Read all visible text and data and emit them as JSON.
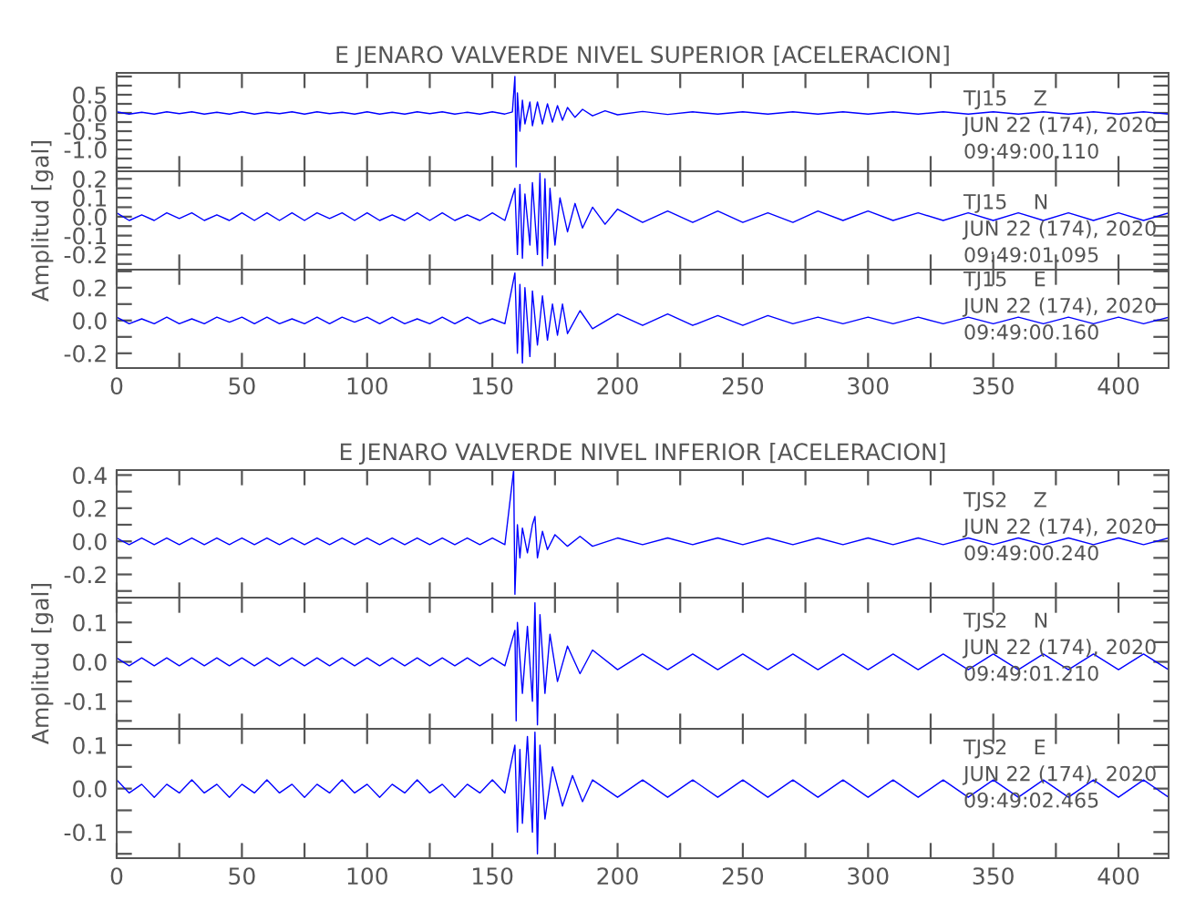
{
  "chart_data": [
    {
      "type": "line",
      "title": "E JENARO VALVERDE NIVEL SUPERIOR [ACELERACION]",
      "color": "#0000ff",
      "tick_labels": "y",
      "x": [
        0,
        5,
        10,
        15,
        20,
        25,
        30,
        35,
        40,
        45,
        50,
        55,
        60,
        65,
        70,
        75,
        80,
        85,
        90,
        95,
        100,
        105,
        110,
        115,
        120,
        125,
        130,
        135,
        140,
        145,
        150,
        155,
        158,
        159,
        159.5,
        160,
        161,
        162,
        163,
        165,
        166,
        168,
        170,
        172,
        174,
        176,
        178,
        180,
        183,
        186,
        190,
        195,
        200,
        210,
        220,
        230,
        240,
        250,
        260,
        270,
        280,
        290,
        300,
        310,
        320,
        330,
        340,
        350,
        360,
        370,
        380,
        390,
        400,
        410,
        420
      ],
      "values": [
        0.03,
        -0.03,
        0.02,
        -0.03,
        0.03,
        -0.02,
        0.03,
        -0.03,
        0.02,
        -0.03,
        0.03,
        -0.03,
        0.02,
        -0.02,
        0.03,
        -0.03,
        0.03,
        -0.02,
        0.02,
        -0.03,
        0.03,
        -0.03,
        0.02,
        -0.03,
        0.03,
        -0.02,
        0.03,
        -0.03,
        0.02,
        -0.03,
        0.03,
        -0.03,
        0.03,
        1.0,
        -1.48,
        0.55,
        -0.5,
        0.35,
        -0.3,
        0.3,
        -0.35,
        0.3,
        -0.3,
        0.25,
        -0.25,
        0.2,
        -0.2,
        0.15,
        -0.12,
        0.1,
        -0.08,
        0.06,
        -0.05,
        0.04,
        -0.04,
        0.03,
        -0.03,
        0.03,
        -0.03,
        0.03,
        -0.03,
        0.03,
        -0.03,
        0.03,
        -0.03,
        0.03,
        -0.03,
        0.03,
        -0.03,
        0.03,
        -0.03,
        0.03,
        -0.03,
        0.03,
        -0.03
      ],
      "xlim": [
        0,
        420
      ],
      "xticks": [
        0,
        {
          "value": 25,
          "label": null
        },
        50,
        {
          "value": 75,
          "label": null
        },
        100,
        {
          "value": 125,
          "label": null
        },
        150,
        {
          "value": 175,
          "label": null
        },
        200,
        {
          "value": 225,
          "label": null
        },
        250,
        {
          "value": 275,
          "label": null
        },
        300,
        {
          "value": 325,
          "label": null
        },
        350,
        {
          "value": 375,
          "label": null
        },
        400
      ],
      "ylim": [
        -1.6,
        1.1
      ],
      "yticks": [
        {
          "value": -1.5,
          "label": null
        },
        {
          "value": -1.25,
          "label": null
        },
        {
          "value": -1.0,
          "label": "-1.0"
        },
        {
          "value": -0.75,
          "label": null
        },
        -0.5,
        {
          "value": -0.25,
          "label": null
        },
        {
          "value": 0,
          "label": "0.0"
        },
        {
          "value": 0.25,
          "label": null
        },
        0.5,
        {
          "value": 0.75,
          "label": null
        },
        {
          "value": 1.0,
          "label": null
        }
      ],
      "annotations": [
        "TJ15    Z",
        "JUN 22 (174), 2020",
        "09:49:00.110"
      ]
    },
    {
      "type": "line",
      "ylabel": "Amplitud [gal]",
      "color": "#0000ff",
      "tick_labels": "y",
      "x": [
        0,
        5,
        10,
        15,
        20,
        25,
        30,
        35,
        40,
        45,
        50,
        55,
        60,
        65,
        70,
        75,
        80,
        85,
        90,
        95,
        100,
        105,
        110,
        115,
        120,
        125,
        130,
        135,
        140,
        145,
        150,
        155,
        159,
        160,
        161,
        162,
        163,
        165,
        166,
        168,
        169,
        170,
        171,
        172,
        173,
        175,
        177,
        180,
        183,
        186,
        190,
        195,
        200,
        210,
        220,
        230,
        240,
        250,
        260,
        270,
        280,
        290,
        300,
        310,
        320,
        330,
        340,
        350,
        360,
        370,
        380,
        390,
        400,
        410,
        420
      ],
      "values": [
        0.02,
        -0.02,
        0.01,
        -0.02,
        0.02,
        -0.01,
        0.02,
        -0.02,
        0.01,
        -0.02,
        0.02,
        -0.02,
        0.02,
        -0.02,
        0.02,
        -0.02,
        0.02,
        -0.01,
        0.02,
        -0.02,
        0.02,
        -0.02,
        0.01,
        -0.02,
        0.02,
        -0.02,
        0.02,
        -0.02,
        0.01,
        -0.02,
        0.02,
        -0.02,
        0.15,
        -0.2,
        0.17,
        -0.22,
        0.12,
        -0.15,
        0.18,
        -0.2,
        0.23,
        -0.26,
        0.2,
        -0.22,
        0.15,
        -0.15,
        0.1,
        -0.08,
        0.07,
        -0.06,
        0.05,
        -0.04,
        0.04,
        -0.03,
        0.03,
        -0.03,
        0.03,
        -0.03,
        0.02,
        -0.03,
        0.03,
        -0.02,
        0.03,
        -0.02,
        0.02,
        -0.02,
        0.02,
        -0.02,
        0.02,
        -0.02,
        0.02,
        -0.02,
        0.02,
        -0.02,
        0.02
      ],
      "xlim": [
        0,
        420
      ],
      "xticks": [
        0,
        {
          "value": 25,
          "label": null
        },
        50,
        {
          "value": 75,
          "label": null
        },
        100,
        {
          "value": 125,
          "label": null
        },
        150,
        {
          "value": 175,
          "label": null
        },
        200,
        {
          "value": 225,
          "label": null
        },
        250,
        {
          "value": 275,
          "label": null
        },
        300,
        {
          "value": 325,
          "label": null
        },
        350,
        {
          "value": 375,
          "label": null
        },
        400
      ],
      "ylim": [
        -0.28,
        0.24
      ],
      "yticks": [
        {
          "value": -0.25,
          "label": null
        },
        -0.2,
        {
          "value": -0.15,
          "label": null
        },
        -0.1,
        {
          "value": -0.05,
          "label": null
        },
        {
          "value": 0,
          "label": "0.0"
        },
        {
          "value": 0.05,
          "label": null
        },
        0.1,
        {
          "value": 0.15,
          "label": null
        },
        0.2
      ],
      "annotations": [
        "TJ15    N",
        "JUN 22 (174), 2020",
        "09:49:01.095"
      ]
    },
    {
      "type": "line",
      "color": "#0000ff",
      "x": [
        0,
        5,
        10,
        15,
        20,
        25,
        30,
        35,
        40,
        45,
        50,
        55,
        60,
        65,
        70,
        75,
        80,
        85,
        90,
        95,
        100,
        105,
        110,
        115,
        120,
        125,
        130,
        135,
        140,
        145,
        150,
        155,
        159,
        160,
        161,
        162,
        163,
        165,
        166,
        168,
        170,
        172,
        174,
        176,
        178,
        180,
        185,
        190,
        200,
        210,
        220,
        230,
        240,
        250,
        260,
        270,
        280,
        290,
        300,
        310,
        320,
        330,
        340,
        350,
        360,
        370,
        380,
        390,
        400,
        410,
        420
      ],
      "values": [
        0.02,
        -0.02,
        0.01,
        -0.02,
        0.02,
        -0.02,
        0.01,
        -0.02,
        0.02,
        -0.01,
        0.02,
        -0.02,
        0.02,
        -0.02,
        0.01,
        -0.02,
        0.02,
        -0.02,
        0.02,
        -0.01,
        0.02,
        -0.02,
        0.02,
        -0.02,
        0.01,
        -0.02,
        0.02,
        -0.02,
        0.02,
        -0.02,
        0.01,
        -0.02,
        0.29,
        -0.2,
        0.22,
        -0.26,
        0.2,
        -0.22,
        0.18,
        -0.15,
        0.15,
        -0.12,
        0.1,
        -0.09,
        0.1,
        -0.08,
        0.06,
        -0.05,
        0.04,
        -0.03,
        0.04,
        -0.03,
        0.03,
        -0.03,
        0.03,
        -0.02,
        0.02,
        -0.02,
        0.02,
        -0.02,
        0.02,
        -0.02,
        0.02,
        -0.02,
        0.02,
        -0.02,
        0.02,
        -0.02,
        0.02,
        -0.02,
        0.02
      ],
      "xlim": [
        0,
        420
      ],
      "xticks": [
        0,
        {
          "value": 25,
          "label": null
        },
        50,
        {
          "value": 75,
          "label": null
        },
        100,
        {
          "value": 125,
          "label": null
        },
        150,
        {
          "value": 175,
          "label": null
        },
        200,
        {
          "value": 225,
          "label": null
        },
        250,
        {
          "value": 275,
          "label": null
        },
        300,
        {
          "value": 325,
          "label": null
        },
        350,
        {
          "value": 375,
          "label": null
        },
        400
      ],
      "ylim": [
        -0.29,
        0.31
      ],
      "yticks": [
        -0.2,
        {
          "value": -0.1,
          "label": null
        },
        {
          "value": 0,
          "label": "0.0"
        },
        {
          "value": 0.1,
          "label": null
        },
        0.2,
        {
          "value": 0.3,
          "label": null
        }
      ],
      "annotations": [
        "TJ15    E",
        "JUN 22 (174), 2020",
        "09:49:00.160"
      ]
    },
    {
      "type": "line",
      "title": "E JENARO VALVERDE NIVEL INFERIOR [ACELERACION]",
      "color": "#0000ff",
      "tick_labels": "y",
      "x": [
        0,
        5,
        10,
        15,
        20,
        25,
        30,
        35,
        40,
        45,
        50,
        55,
        60,
        65,
        70,
        75,
        80,
        85,
        90,
        95,
        100,
        105,
        110,
        115,
        120,
        125,
        130,
        135,
        140,
        145,
        150,
        155,
        158.5,
        159,
        160,
        161,
        162,
        164,
        166,
        167,
        168,
        170,
        172,
        175,
        180,
        185,
        190,
        200,
        210,
        220,
        230,
        240,
        250,
        260,
        270,
        280,
        290,
        300,
        310,
        320,
        330,
        340,
        350,
        360,
        370,
        380,
        390,
        400,
        410,
        420
      ],
      "values": [
        0.02,
        -0.02,
        0.02,
        -0.02,
        0.02,
        -0.02,
        0.02,
        -0.02,
        0.02,
        -0.02,
        0.02,
        -0.02,
        0.02,
        -0.02,
        0.02,
        -0.02,
        0.02,
        -0.02,
        0.02,
        -0.02,
        0.02,
        -0.02,
        0.02,
        -0.02,
        0.02,
        -0.02,
        0.02,
        -0.02,
        0.02,
        -0.02,
        0.02,
        -0.02,
        0.43,
        -0.32,
        0.1,
        -0.1,
        0.08,
        -0.07,
        0.1,
        0.15,
        -0.1,
        0.06,
        -0.05,
        0.04,
        -0.03,
        0.03,
        -0.03,
        0.02,
        -0.02,
        0.02,
        -0.02,
        0.02,
        -0.02,
        0.02,
        -0.02,
        0.02,
        -0.02,
        0.02,
        -0.02,
        0.02,
        -0.02,
        0.02,
        -0.02,
        0.02,
        -0.02,
        0.02,
        -0.02,
        0.02,
        -0.02,
        0.02
      ],
      "xlim": [
        0,
        420
      ],
      "xticks": [
        0,
        {
          "value": 25,
          "label": null
        },
        50,
        {
          "value": 75,
          "label": null
        },
        100,
        {
          "value": 125,
          "label": null
        },
        150,
        {
          "value": 175,
          "label": null
        },
        200,
        {
          "value": 225,
          "label": null
        },
        250,
        {
          "value": 275,
          "label": null
        },
        300,
        {
          "value": 325,
          "label": null
        },
        350,
        {
          "value": 375,
          "label": null
        },
        400
      ],
      "ylim": [
        -0.34,
        0.43
      ],
      "yticks": [
        {
          "value": -0.3,
          "label": null
        },
        -0.2,
        {
          "value": -0.1,
          "label": null
        },
        {
          "value": 0,
          "label": "0.0"
        },
        {
          "value": 0.1,
          "label": null
        },
        0.2,
        {
          "value": 0.3,
          "label": null
        },
        0.4
      ],
      "annotations": [
        "TJS2    Z",
        "JUN 22 (174), 2020",
        "09:49:00.240"
      ]
    },
    {
      "type": "line",
      "ylabel": "Amplitud [gal]",
      "color": "#0000ff",
      "tick_labels": "y",
      "x": [
        0,
        5,
        10,
        15,
        20,
        25,
        30,
        35,
        40,
        45,
        50,
        55,
        60,
        65,
        70,
        75,
        80,
        85,
        90,
        95,
        100,
        105,
        110,
        115,
        120,
        125,
        130,
        135,
        140,
        145,
        150,
        155,
        159,
        159.5,
        160,
        162,
        164,
        166,
        167,
        168,
        169,
        171,
        173,
        176,
        180,
        185,
        190,
        200,
        210,
        220,
        230,
        240,
        250,
        260,
        270,
        280,
        290,
        300,
        310,
        320,
        330,
        340,
        350,
        360,
        370,
        380,
        390,
        400,
        410,
        420
      ],
      "values": [
        0.01,
        -0.01,
        0.01,
        -0.01,
        0.01,
        -0.01,
        0.01,
        -0.01,
        0.01,
        -0.01,
        0.01,
        -0.01,
        0.01,
        -0.01,
        0.01,
        -0.01,
        0.01,
        -0.01,
        0.01,
        -0.01,
        0.01,
        -0.01,
        0.01,
        -0.01,
        0.01,
        -0.01,
        0.01,
        -0.01,
        0.01,
        -0.01,
        0.01,
        -0.01,
        0.08,
        -0.15,
        0.1,
        -0.08,
        0.09,
        -0.1,
        0.15,
        -0.16,
        0.12,
        -0.08,
        0.07,
        -0.05,
        0.04,
        -0.03,
        0.03,
        -0.02,
        0.02,
        -0.02,
        0.02,
        -0.02,
        0.02,
        -0.02,
        0.02,
        -0.02,
        0.02,
        -0.02,
        0.02,
        -0.02,
        0.02,
        -0.02,
        0.02,
        -0.02,
        0.02,
        -0.02,
        0.02,
        -0.02,
        0.02,
        -0.02
      ],
      "xlim": [
        0,
        420
      ],
      "xticks": [
        0,
        {
          "value": 25,
          "label": null
        },
        50,
        {
          "value": 75,
          "label": null
        },
        100,
        {
          "value": 125,
          "label": null
        },
        150,
        {
          "value": 175,
          "label": null
        },
        200,
        {
          "value": 225,
          "label": null
        },
        250,
        {
          "value": 275,
          "label": null
        },
        300,
        {
          "value": 325,
          "label": null
        },
        350,
        {
          "value": 375,
          "label": null
        },
        400
      ],
      "ylim": [
        -0.17,
        0.163
      ],
      "yticks": [
        {
          "value": -0.15,
          "label": null
        },
        -0.1,
        {
          "value": -0.05,
          "label": null
        },
        {
          "value": 0,
          "label": "0.0"
        },
        {
          "value": 0.05,
          "label": null
        },
        0.1,
        {
          "value": 0.15,
          "label": null
        }
      ],
      "annotations": [
        "TJS2    N",
        "JUN 22 (174), 2020",
        "09:49:01.210"
      ]
    },
    {
      "type": "line",
      "color": "#0000ff",
      "x": [
        0,
        5,
        10,
        15,
        20,
        25,
        30,
        35,
        40,
        45,
        50,
        55,
        60,
        65,
        70,
        75,
        80,
        85,
        90,
        95,
        100,
        105,
        110,
        115,
        120,
        125,
        130,
        135,
        140,
        145,
        150,
        155,
        159,
        160,
        161,
        162,
        164,
        166,
        167,
        168,
        169,
        171,
        174,
        178,
        182,
        186,
        190,
        200,
        210,
        220,
        230,
        240,
        250,
        260,
        270,
        280,
        290,
        300,
        310,
        320,
        330,
        340,
        350,
        360,
        370,
        380,
        390,
        400,
        410,
        420
      ],
      "values": [
        0.02,
        -0.01,
        0.01,
        -0.02,
        0.01,
        -0.01,
        0.02,
        -0.01,
        0.01,
        -0.02,
        0.01,
        -0.01,
        0.02,
        -0.01,
        0.01,
        -0.02,
        0.01,
        -0.01,
        0.02,
        -0.01,
        0.01,
        -0.02,
        0.01,
        -0.01,
        0.02,
        -0.01,
        0.01,
        -0.02,
        0.01,
        -0.01,
        0.02,
        -0.01,
        0.1,
        -0.1,
        0.09,
        -0.08,
        0.12,
        -0.1,
        0.13,
        -0.15,
        0.1,
        -0.07,
        0.05,
        -0.04,
        0.03,
        -0.03,
        0.02,
        -0.02,
        0.02,
        -0.02,
        0.02,
        -0.02,
        0.02,
        -0.02,
        0.02,
        -0.02,
        0.02,
        -0.02,
        0.02,
        -0.02,
        0.02,
        -0.02,
        0.02,
        -0.02,
        0.02,
        -0.02,
        0.02,
        -0.02,
        0.02,
        -0.02
      ],
      "xlim": [
        0,
        420
      ],
      "xticks": [
        0,
        {
          "value": 25,
          "label": null
        },
        50,
        {
          "value": 75,
          "label": null
        },
        100,
        {
          "value": 125,
          "label": null
        },
        150,
        {
          "value": 175,
          "label": null
        },
        200,
        {
          "value": 225,
          "label": null
        },
        250,
        {
          "value": 275,
          "label": null
        },
        300,
        {
          "value": 325,
          "label": null
        },
        350,
        {
          "value": 375,
          "label": null
        },
        400
      ],
      "ylim": [
        -0.16,
        0.1375
      ],
      "yticks": [
        {
          "value": -0.15,
          "label": null
        },
        -0.1,
        {
          "value": -0.05,
          "label": null
        },
        {
          "value": 0,
          "label": "0.0"
        },
        {
          "value": 0.05,
          "label": null
        },
        0.1
      ],
      "annotations": [
        "TJS2    E",
        "JUN 22 (174), 2020",
        "09:49:02.465"
      ]
    }
  ]
}
